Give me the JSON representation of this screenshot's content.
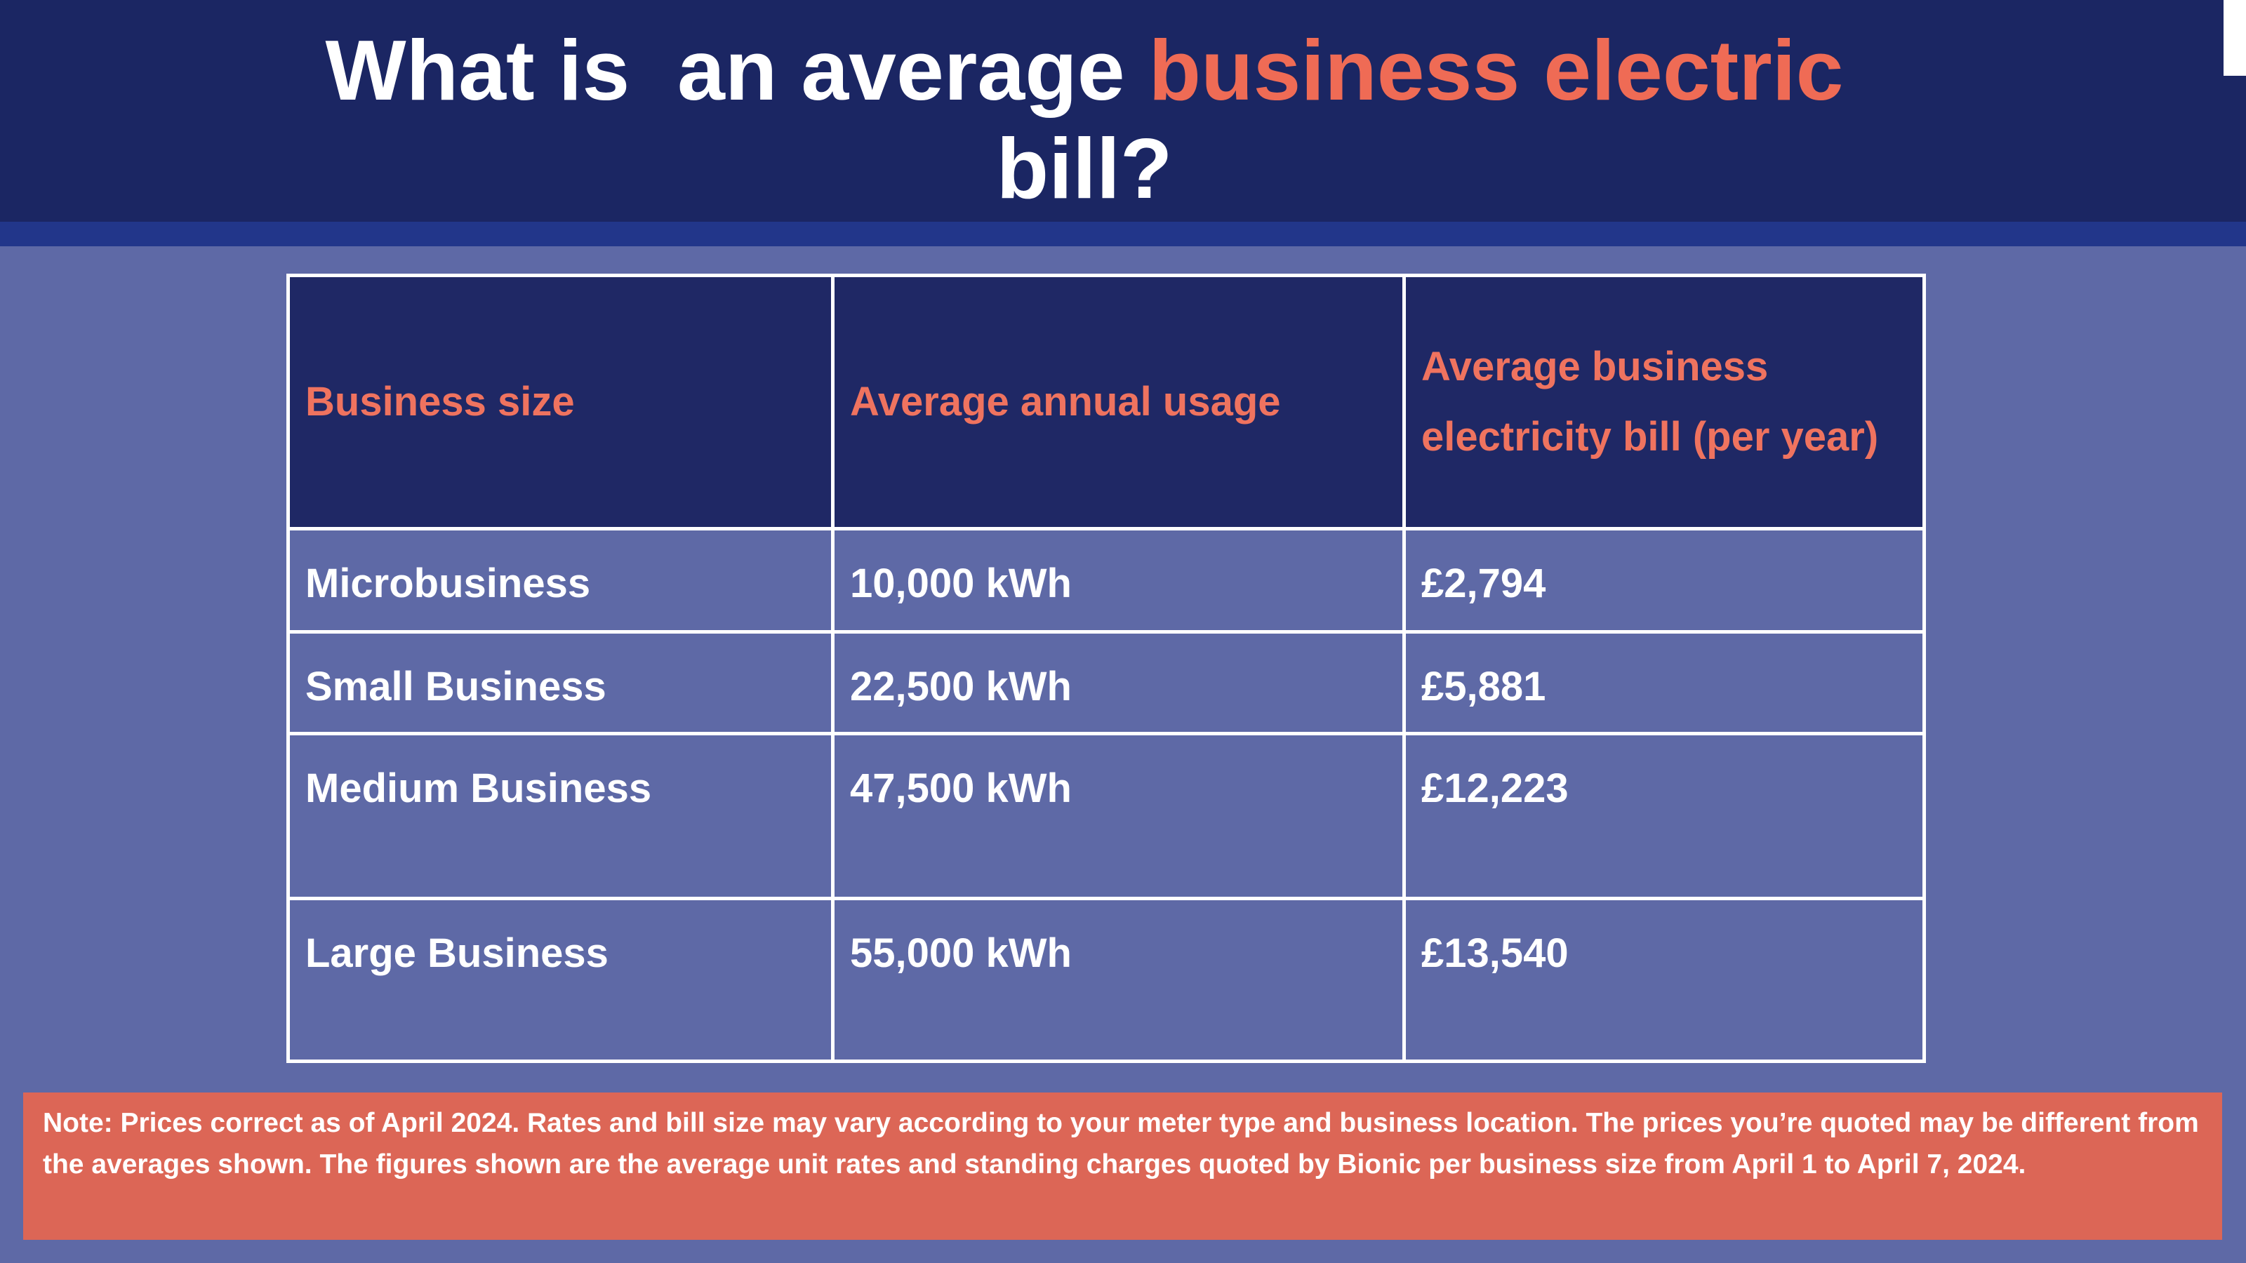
{
  "header": {
    "title": {
      "before": "What is  an average ",
      "highlight": "business electric",
      "after": "bill?"
    }
  },
  "table": {
    "header": [
      "Business size",
      "Average annual usage",
      "Average business electricity bill (per year)"
    ],
    "rows": [
      [
        "Microbusiness",
        "10,000 kWh",
        "£2,794"
      ],
      [
        "Small Business",
        "22,500 kWh",
        "£5,881"
      ],
      [
        "Medium Business",
        "47,500 kWh",
        "£12,223"
      ],
      [
        "Large Business",
        "55,000 kWh",
        "£13,540"
      ]
    ]
  },
  "note": "Note: Prices correct as of April 2024. Rates and bill size may vary according to your meter type and business location. The prices you’re quoted may be different from the averages shown. The figures shown are the average unit rates and standing charges quoted by Bionic per business size from April 1 to April 7, 2024."
}
